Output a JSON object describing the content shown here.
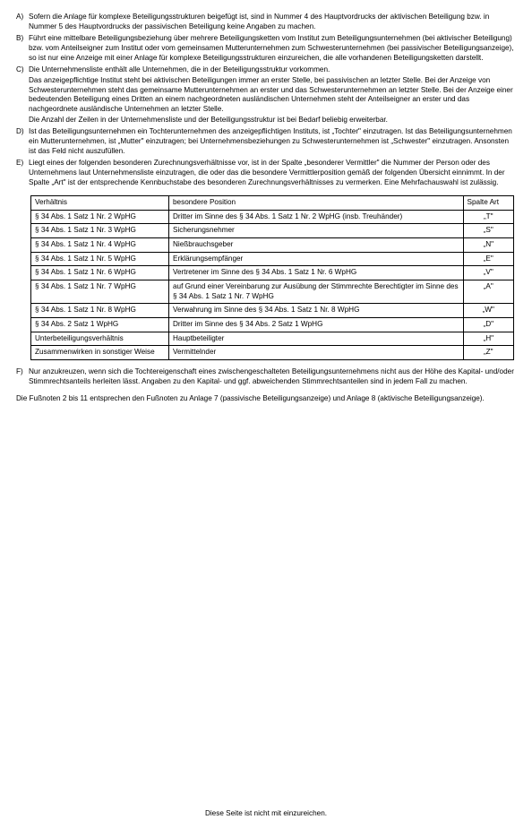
{
  "items": {
    "A": {
      "marker": "A)",
      "paras": [
        "Sofern die Anlage für komplexe Beteiligungsstrukturen beigefügt ist, sind in Nummer 4 des Hauptvordrucks der aktivischen Beteiligung bzw. in Nummer 5 des Hauptvordrucks der passivischen Beteiligung keine Angaben zu machen."
      ]
    },
    "B": {
      "marker": "B)",
      "paras": [
        "Führt eine mittelbare Beteiligungsbeziehung über mehrere Beteiligungsketten vom Institut zum Beteiligungsunternehmen (bei aktivischer Beteiligung) bzw. vom Anteilseigner zum Institut oder vom gemeinsamen Mutterunternehmen zum Schwesterunternehmen (bei passivischer Beteiligungsanzeige), so ist nur eine Anzeige mit einer Anlage für komplexe Beteiligungsstrukturen einzureichen, die alle vorhandenen Beteiligungsketten darstellt."
      ]
    },
    "C": {
      "marker": "C)",
      "paras": [
        "Die Unternehmensliste enthält alle Unternehmen, die in der Beteiligungsstruktur vorkommen.",
        "Das anzeigepflichtige Institut steht bei aktivischen Beteiligungen immer an erster Stelle, bei passivischen an letzter Stelle. Bei der Anzeige von Schwesterunternehmen steht das gemeinsame Mutterunternehmen an erster und das Schwesterunternehmen an letzter Stelle. Bei der Anzeige einer bedeutenden Beteiligung eines Dritten an einem nachgeordneten ausländischen Unternehmen steht der Anteilseigner an erster und das nachgeordnete ausländische Unternehmen an letzter Stelle.",
        "Die Anzahl der Zeilen in der Unternehmensliste und der Beteiligungsstruktur ist bei Bedarf beliebig erweiterbar."
      ]
    },
    "D": {
      "marker": "D)",
      "paras": [
        "Ist das Beteiligungsunternehmen ein Tochterunternehmen des anzeigepflichtigen Instituts, ist „Tochter\" einzutragen. Ist das Beteiligungsunternehmen ein Mutterunternehmen, ist „Mutter\" einzutragen; bei Unternehmensbeziehungen zu Schwesterunternehmen ist „Schwester\" einzutragen. Ansonsten ist das Feld nicht auszufüllen."
      ]
    },
    "E": {
      "marker": "E)",
      "paras": [
        "Liegt eines der folgenden besonderen Zurechnungsverhältnisse vor, ist in der Spalte „besonderer Vermittler\" die Nummer der Person oder des Unternehmens laut Unternehmensliste einzutragen, die oder das die besondere Vermittlerposition gemäß der folgenden Übersicht einnimmt. In der Spalte „Art\" ist der entsprechende Kennbuchstabe des besonderen Zurechnungsverhältnisses zu vermerken. Eine Mehrfachauswahl ist zulässig."
      ]
    },
    "F": {
      "marker": "F)",
      "paras": [
        "Nur anzukreuzen, wenn sich die Tochtereigenschaft eines zwischengeschalteten Beteiligungsunternehmens nicht aus der Höhe des Kapital- und/oder Stimmrechtsanteils herleiten lässt. Angaben zu den Kapital- und ggf. abweichenden Stimmrechtsanteilen sind in jedem Fall zu machen."
      ]
    }
  },
  "table": {
    "headers": [
      "Verhältnis",
      "besondere Position",
      "Spalte Art"
    ],
    "rows": [
      [
        "§ 34 Abs. 1 Satz 1 Nr. 2 WpHG",
        "Dritter im Sinne des § 34 Abs. 1 Satz 1 Nr. 2 WpHG (insb. Treuhänder)",
        "„T\""
      ],
      [
        "§ 34 Abs. 1 Satz 1 Nr. 3 WpHG",
        "Sicherungsnehmer",
        "„S\""
      ],
      [
        "§ 34 Abs. 1 Satz 1 Nr. 4 WpHG",
        "Nießbrauchsgeber",
        "„N\""
      ],
      [
        "§ 34 Abs. 1 Satz 1 Nr. 5 WpHG",
        "Erklärungsempfänger",
        "„E\""
      ],
      [
        "§ 34 Abs. 1 Satz 1 Nr. 6 WpHG",
        "Vertretener im Sinne des § 34 Abs. 1 Satz 1 Nr. 6 WpHG",
        "„V\""
      ],
      [
        "§ 34 Abs. 1 Satz 1 Nr. 7 WpHG",
        "auf Grund einer Vereinbarung zur Ausübung der Stimmrechte Berechtigter im Sinne des § 34 Abs. 1 Satz 1 Nr. 7 WpHG",
        "„A\""
      ],
      [
        "§ 34 Abs. 1 Satz 1 Nr. 8 WpHG",
        "Verwahrung im Sinne des § 34 Abs. 1 Satz 1 Nr. 8 WpHG",
        "„W\""
      ],
      [
        "§ 34 Abs. 2 Satz 1 WpHG",
        "Dritter im Sinne des § 34 Abs. 2 Satz 1 WpHG",
        "„D\""
      ],
      [
        "Unterbeteiligungsverhältnis",
        "Hauptbeteiligter",
        "„H\""
      ],
      [
        "Zusammenwirken in sonstiger Weise",
        "Vermittelnder",
        "„Z\""
      ]
    ]
  },
  "footnote": "Die Fußnoten 2 bis 11 entsprechen den Fußnoten zu Anlage 7 (passivische Beteiligungsanzeige) und Anlage 8 (aktivische Beteiligungsanzeige).",
  "bottom": "Diese Seite ist nicht mit einzureichen."
}
